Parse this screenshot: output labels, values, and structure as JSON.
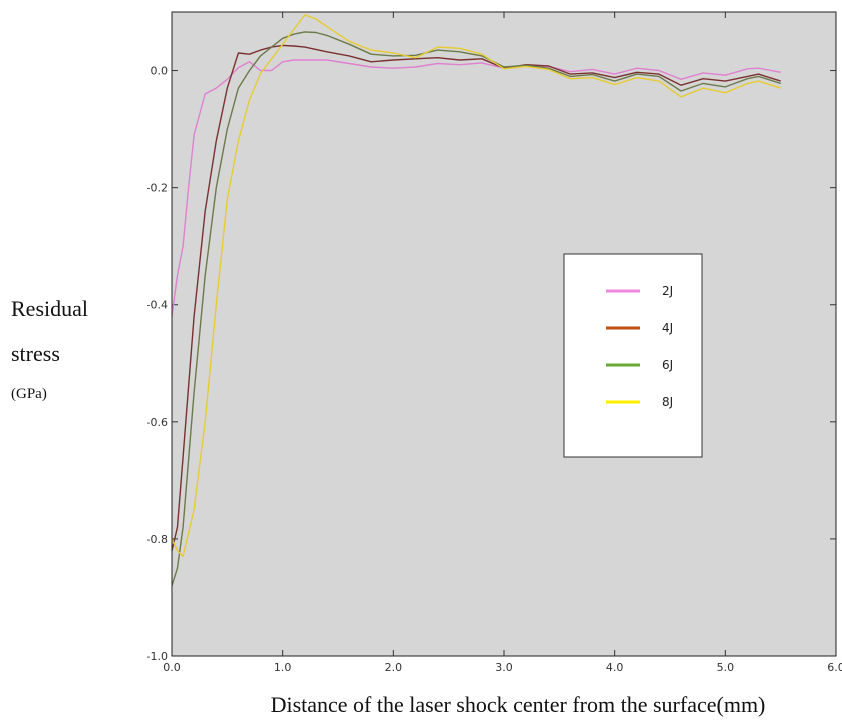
{
  "chart_data": {
    "type": "line",
    "xlabel": "Distance of the laser shock center from the surface(mm)",
    "ylabel": [
      "Residual",
      "stress",
      "(GPa)"
    ],
    "xlim": [
      0.0,
      6.0
    ],
    "ylim": [
      -1.0,
      0.1
    ],
    "x_ticks": [
      0,
      1,
      2,
      3,
      4,
      5,
      6
    ],
    "x_tick_labels": [
      "0.0",
      "1.0",
      "2.0",
      "3.0",
      "4.0",
      "5.0",
      "6.0"
    ],
    "y_ticks": [
      0,
      -0.2,
      -0.4,
      -0.6,
      -0.8,
      -1.0
    ],
    "y_tick_labels": [
      "0.0",
      "-0.2",
      "-0.4",
      "-0.6",
      "-0.8",
      "-1.0"
    ],
    "grid": false,
    "background": "#d6d6d6",
    "legend_position": "right-center",
    "series": [
      {
        "name": "2J",
        "color": "#e080d0",
        "legend_color": "#ee88dd",
        "points": [
          [
            0.0,
            -0.42
          ],
          [
            0.05,
            -0.35
          ],
          [
            0.1,
            -0.3
          ],
          [
            0.15,
            -0.2
          ],
          [
            0.2,
            -0.11
          ],
          [
            0.3,
            -0.04
          ],
          [
            0.4,
            -0.03
          ],
          [
            0.5,
            -0.015
          ],
          [
            0.6,
            0.005
          ],
          [
            0.7,
            0.015
          ],
          [
            0.8,
            0.0
          ],
          [
            0.9,
            0.0
          ],
          [
            1.0,
            0.015
          ],
          [
            1.1,
            0.018
          ],
          [
            1.2,
            0.018
          ],
          [
            1.4,
            0.018
          ],
          [
            1.6,
            0.012
          ],
          [
            1.8,
            0.006
          ],
          [
            2.0,
            0.004
          ],
          [
            2.2,
            0.006
          ],
          [
            2.4,
            0.012
          ],
          [
            2.6,
            0.01
          ],
          [
            2.8,
            0.013
          ],
          [
            3.0,
            0.004
          ],
          [
            3.2,
            0.008
          ],
          [
            3.4,
            0.007
          ],
          [
            3.6,
            -0.002
          ],
          [
            3.8,
            0.002
          ],
          [
            4.0,
            -0.006
          ],
          [
            4.2,
            0.004
          ],
          [
            4.4,
            0.0
          ],
          [
            4.6,
            -0.015
          ],
          [
            4.8,
            -0.004
          ],
          [
            5.0,
            -0.008
          ],
          [
            5.2,
            0.003
          ],
          [
            5.3,
            0.004
          ],
          [
            5.5,
            -0.003
          ]
        ]
      },
      {
        "name": "4J",
        "color": "#7a3030",
        "legend_color": "#c05010",
        "points": [
          [
            0.0,
            -0.82
          ],
          [
            0.05,
            -0.78
          ],
          [
            0.1,
            -0.66
          ],
          [
            0.2,
            -0.42
          ],
          [
            0.3,
            -0.24
          ],
          [
            0.4,
            -0.12
          ],
          [
            0.5,
            -0.03
          ],
          [
            0.6,
            0.03
          ],
          [
            0.7,
            0.028
          ],
          [
            0.8,
            0.035
          ],
          [
            0.9,
            0.04
          ],
          [
            1.0,
            0.043
          ],
          [
            1.1,
            0.042
          ],
          [
            1.2,
            0.04
          ],
          [
            1.4,
            0.032
          ],
          [
            1.6,
            0.025
          ],
          [
            1.8,
            0.015
          ],
          [
            2.0,
            0.018
          ],
          [
            2.2,
            0.02
          ],
          [
            2.4,
            0.022
          ],
          [
            2.6,
            0.018
          ],
          [
            2.8,
            0.02
          ],
          [
            3.0,
            0.004
          ],
          [
            3.2,
            0.01
          ],
          [
            3.4,
            0.008
          ],
          [
            3.6,
            -0.006
          ],
          [
            3.8,
            -0.004
          ],
          [
            4.0,
            -0.012
          ],
          [
            4.2,
            -0.003
          ],
          [
            4.4,
            -0.006
          ],
          [
            4.6,
            -0.025
          ],
          [
            4.8,
            -0.014
          ],
          [
            5.0,
            -0.018
          ],
          [
            5.2,
            -0.01
          ],
          [
            5.3,
            -0.006
          ],
          [
            5.5,
            -0.018
          ]
        ]
      },
      {
        "name": "6J",
        "color": "#6a7a4a",
        "legend_color": "#66aa33",
        "points": [
          [
            0.0,
            -0.88
          ],
          [
            0.05,
            -0.85
          ],
          [
            0.1,
            -0.78
          ],
          [
            0.2,
            -0.55
          ],
          [
            0.3,
            -0.35
          ],
          [
            0.4,
            -0.2
          ],
          [
            0.5,
            -0.1
          ],
          [
            0.6,
            -0.03
          ],
          [
            0.7,
            0.0
          ],
          [
            0.8,
            0.025
          ],
          [
            0.9,
            0.04
          ],
          [
            1.0,
            0.055
          ],
          [
            1.1,
            0.062
          ],
          [
            1.2,
            0.066
          ],
          [
            1.3,
            0.065
          ],
          [
            1.4,
            0.06
          ],
          [
            1.6,
            0.045
          ],
          [
            1.8,
            0.028
          ],
          [
            2.0,
            0.025
          ],
          [
            2.2,
            0.026
          ],
          [
            2.4,
            0.035
          ],
          [
            2.6,
            0.032
          ],
          [
            2.8,
            0.025
          ],
          [
            3.0,
            0.006
          ],
          [
            3.2,
            0.009
          ],
          [
            3.4,
            0.004
          ],
          [
            3.6,
            -0.01
          ],
          [
            3.8,
            -0.007
          ],
          [
            4.0,
            -0.018
          ],
          [
            4.2,
            -0.006
          ],
          [
            4.4,
            -0.01
          ],
          [
            4.6,
            -0.035
          ],
          [
            4.8,
            -0.022
          ],
          [
            5.0,
            -0.028
          ],
          [
            5.2,
            -0.014
          ],
          [
            5.3,
            -0.01
          ],
          [
            5.5,
            -0.022
          ]
        ]
      },
      {
        "name": "8J",
        "color": "#e6cc30",
        "legend_color": "#ffee00",
        "points": [
          [
            0.0,
            -0.8
          ],
          [
            0.05,
            -0.82
          ],
          [
            0.1,
            -0.83
          ],
          [
            0.2,
            -0.75
          ],
          [
            0.3,
            -0.6
          ],
          [
            0.4,
            -0.4
          ],
          [
            0.5,
            -0.22
          ],
          [
            0.6,
            -0.12
          ],
          [
            0.7,
            -0.05
          ],
          [
            0.8,
            -0.005
          ],
          [
            0.9,
            0.02
          ],
          [
            1.0,
            0.045
          ],
          [
            1.1,
            0.07
          ],
          [
            1.2,
            0.095
          ],
          [
            1.3,
            0.088
          ],
          [
            1.4,
            0.075
          ],
          [
            1.6,
            0.05
          ],
          [
            1.8,
            0.035
          ],
          [
            2.0,
            0.03
          ],
          [
            2.2,
            0.022
          ],
          [
            2.4,
            0.04
          ],
          [
            2.6,
            0.038
          ],
          [
            2.8,
            0.028
          ],
          [
            3.0,
            0.003
          ],
          [
            3.2,
            0.007
          ],
          [
            3.4,
            0.002
          ],
          [
            3.6,
            -0.014
          ],
          [
            3.8,
            -0.012
          ],
          [
            4.0,
            -0.024
          ],
          [
            4.2,
            -0.012
          ],
          [
            4.4,
            -0.018
          ],
          [
            4.6,
            -0.045
          ],
          [
            4.8,
            -0.03
          ],
          [
            5.0,
            -0.038
          ],
          [
            5.2,
            -0.022
          ],
          [
            5.3,
            -0.018
          ],
          [
            5.5,
            -0.03
          ]
        ]
      }
    ]
  }
}
